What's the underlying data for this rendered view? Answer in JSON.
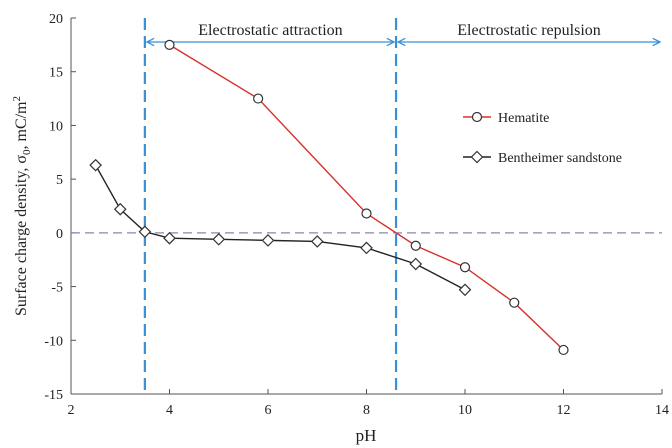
{
  "chart_data": {
    "type": "scatter",
    "xlabel": "pH",
    "ylabel": "Surface charge density, σ",
    "ylabel_sub": "0",
    "ylabel_unit": ", mC/m",
    "ylabel_sup": "2",
    "xlim": [
      2,
      14
    ],
    "ylim": [
      -15,
      20
    ],
    "xticks": [
      2,
      4,
      6,
      8,
      10,
      12,
      14
    ],
    "yticks": [
      -15,
      -10,
      -5,
      0,
      5,
      10,
      15,
      20
    ],
    "grid": false,
    "legend_position": "right",
    "zero_line": {
      "y": 0,
      "style": "dashed",
      "color": "#8a86a8"
    },
    "vertical_lines": [
      {
        "x": 3.5,
        "color": "#3a8fd6",
        "style": "dashed"
      },
      {
        "x": 8.6,
        "color": "#3a8fd6",
        "style": "dashed"
      }
    ],
    "regions": [
      {
        "label": "Electrostatic attraction",
        "from": 3.5,
        "to": 8.6,
        "color": "#3a8fd6"
      },
      {
        "label": "Electrostatic repulsion",
        "from": 8.6,
        "to": 14,
        "color": "#3a8fd6"
      }
    ],
    "series": [
      {
        "name": "Hematite",
        "marker": "circle",
        "color": "#d9302a",
        "x": [
          4,
          5.8,
          8,
          9,
          10,
          11,
          12
        ],
        "y": [
          17.5,
          12.5,
          1.8,
          -1.2,
          -3.2,
          -6.5,
          -10.9
        ]
      },
      {
        "name": "Bentheimer sandstone",
        "marker": "diamond",
        "color": "#222222",
        "x": [
          2.5,
          3,
          3.5,
          4,
          5,
          6,
          7,
          8,
          9,
          10
        ],
        "y": [
          6.3,
          2.2,
          0.1,
          -0.5,
          -0.6,
          -0.7,
          -0.8,
          -1.4,
          -2.9,
          -5.3
        ]
      }
    ]
  }
}
